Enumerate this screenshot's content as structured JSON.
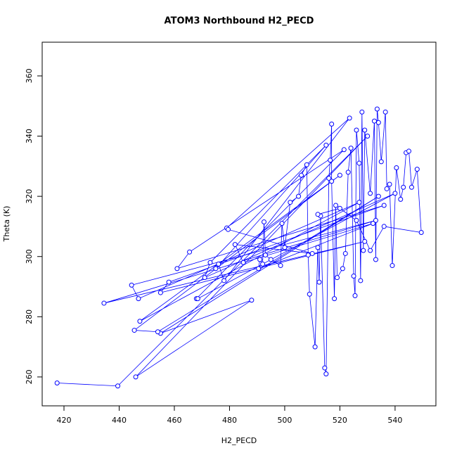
{
  "chart_data": {
    "type": "line",
    "markers": true,
    "title": "ATOM3 Northbound H2_PECD",
    "x_label": "H2_PECD",
    "y_label": "Theta (K)",
    "color": "#0000ff",
    "x": [
      417.5,
      439.5,
      530,
      446,
      488,
      455,
      534,
      454,
      445.5,
      520,
      447.5,
      527,
      447,
      444.5,
      533,
      434.5,
      529,
      455,
      458,
      536,
      461,
      465.5,
      521.5,
      468,
      468.5,
      540,
      471,
      473,
      515,
      475,
      476,
      478,
      523.5,
      479,
      479.5,
      510,
      482,
      485,
      532,
      490.5,
      491,
      492,
      492.5,
      493,
      495,
      498.5,
      499,
      500,
      502,
      505,
      506,
      508,
      508.5,
      509,
      511,
      512,
      512.5,
      513,
      514.5,
      515,
      516,
      516.5,
      517,
      517,
      518,
      518.5,
      519,
      521,
      522,
      523,
      524,
      525,
      525.5,
      526,
      527,
      527.5,
      528,
      528.5,
      529,
      531,
      532.5,
      533,
      533.5,
      534,
      535,
      536.5,
      537,
      538,
      539,
      540.5,
      542,
      543,
      544,
      545,
      546,
      548,
      549.5,
      536,
      531,
      526,
      520,
      512
    ],
    "values": [
      258,
      257,
      340,
      260,
      285.5,
      274.5,
      320,
      275,
      275.5,
      327,
      278.5,
      318,
      286,
      290.5,
      312,
      284.5,
      305,
      288,
      291.5,
      317,
      296,
      301.5,
      335.5,
      286,
      286,
      321,
      293,
      298,
      337,
      296,
      297.5,
      292,
      346,
      309.5,
      309,
      301,
      304,
      298,
      311,
      296,
      299,
      297.5,
      311.5,
      300.5,
      299,
      297,
      311,
      303,
      318,
      320,
      327,
      330.5,
      300.5,
      287.5,
      270,
      303,
      291.5,
      313.5,
      263,
      261,
      326,
      332,
      344,
      325,
      286,
      317,
      293,
      296,
      301,
      328,
      336,
      293.5,
      287,
      342,
      331,
      292,
      348,
      302,
      342,
      321,
      345,
      299,
      349,
      344.5,
      331.5,
      348,
      322.5,
      324,
      297,
      329.5,
      319,
      323,
      334.5,
      335,
      323,
      329,
      308,
      310,
      302,
      312,
      316,
      314
    ],
    "xlim": [
      412.1,
      554.8
    ],
    "ylim": [
      250.4,
      371.2
    ],
    "xticks": [
      420,
      440,
      460,
      480,
      500,
      520,
      540
    ],
    "yticks": [
      260,
      280,
      300,
      320,
      340,
      360
    ]
  }
}
